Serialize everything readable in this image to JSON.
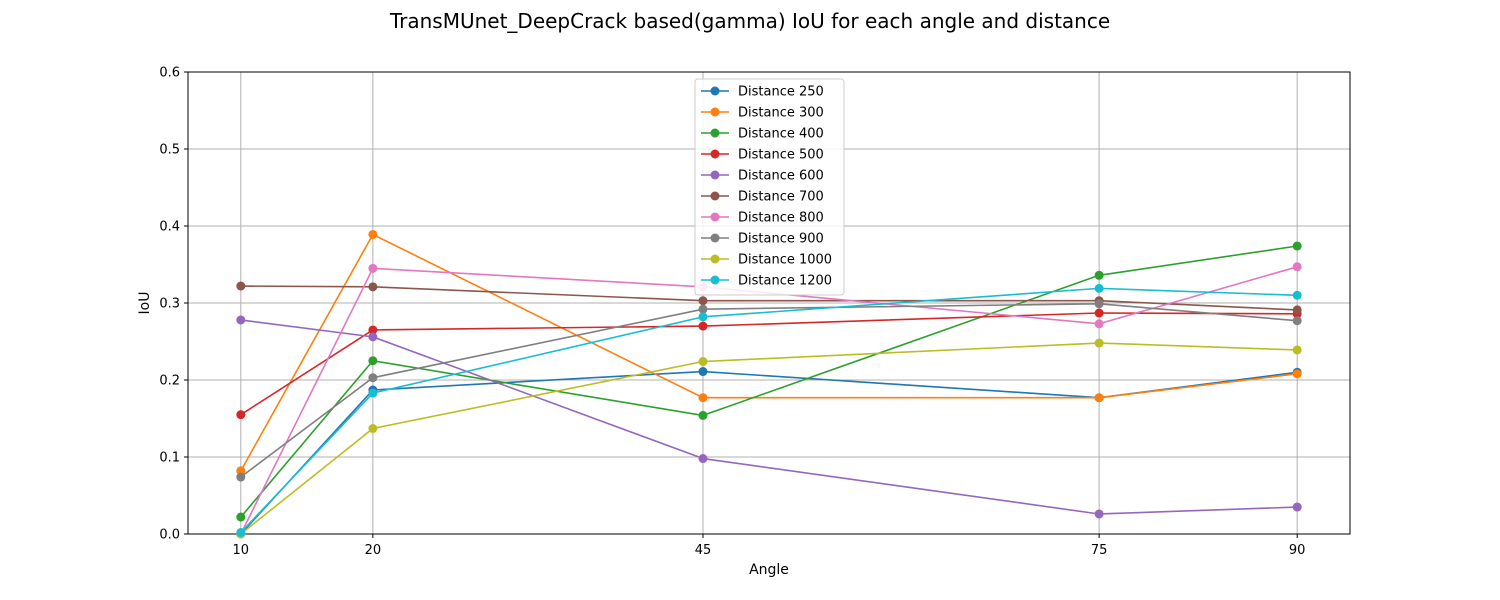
{
  "chart_data": {
    "type": "line",
    "title": "TransMUnet_DeepCrack based(gamma) IoU for each angle and distance",
    "xlabel": "Angle",
    "ylabel": "IoU",
    "x": [
      10,
      20,
      45,
      75,
      90
    ],
    "x_tick_labels": [
      "10",
      "20",
      "45",
      "75",
      "90"
    ],
    "xlim": [
      6,
      94
    ],
    "ylim": [
      0,
      0.6
    ],
    "y_ticks": [
      0,
      0.1,
      0.2,
      0.3,
      0.4,
      0.5,
      0.6
    ],
    "y_tick_labels": [
      "0.0",
      "0.1",
      "0.2",
      "0.3",
      "0.4",
      "0.5",
      "0.6"
    ],
    "grid": true,
    "legend_position": "top-center",
    "series": [
      {
        "name": "Distance 250",
        "color": "#1f77b4",
        "values": [
          0.0,
          0.187,
          0.211,
          0.177,
          0.21
        ]
      },
      {
        "name": "Distance 300",
        "color": "#ff7f0e",
        "values": [
          0.082,
          0.389,
          0.177,
          0.177,
          0.208
        ]
      },
      {
        "name": "Distance 400",
        "color": "#2ca02c",
        "values": [
          0.022,
          0.225,
          0.154,
          0.336,
          0.374
        ]
      },
      {
        "name": "Distance 500",
        "color": "#d62728",
        "values": [
          0.155,
          0.265,
          0.27,
          0.287,
          0.286
        ]
      },
      {
        "name": "Distance 600",
        "color": "#9467bd",
        "values": [
          0.278,
          0.256,
          0.098,
          0.026,
          0.035
        ]
      },
      {
        "name": "Distance 700",
        "color": "#8c564b",
        "values": [
          0.322,
          0.321,
          0.303,
          0.303,
          0.291
        ]
      },
      {
        "name": "Distance 800",
        "color": "#e377c2",
        "values": [
          0.0,
          0.345,
          0.321,
          0.273,
          0.347
        ]
      },
      {
        "name": "Distance 900",
        "color": "#7f7f7f",
        "values": [
          0.074,
          0.203,
          0.292,
          0.299,
          0.277
        ]
      },
      {
        "name": "Distance 1000",
        "color": "#bcbd22",
        "values": [
          0.0,
          0.137,
          0.224,
          0.248,
          0.239
        ]
      },
      {
        "name": "Distance 1200",
        "color": "#17becf",
        "values": [
          0.002,
          0.183,
          0.282,
          0.319,
          0.31
        ]
      }
    ]
  }
}
